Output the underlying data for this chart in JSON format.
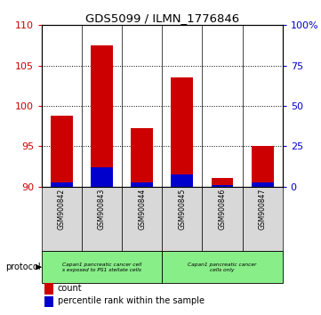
{
  "title": "GDS5099 / ILMN_1776846",
  "samples": [
    "GSM900842",
    "GSM900843",
    "GSM900844",
    "GSM900845",
    "GSM900846",
    "GSM900847"
  ],
  "count_values": [
    98.8,
    107.5,
    97.2,
    103.5,
    91.1,
    95.0
  ],
  "count_base": 90,
  "percentile_values": [
    2.5,
    12.0,
    2.8,
    7.5,
    1.0,
    2.5
  ],
  "ylim_left": [
    90,
    110
  ],
  "ylim_right": [
    0,
    100
  ],
  "left_ticks": [
    90,
    95,
    100,
    105,
    110
  ],
  "right_ticks": [
    0,
    25,
    50,
    75,
    100
  ],
  "right_tick_labels": [
    "0",
    "25",
    "50",
    "75",
    "100%"
  ],
  "left_tick_color": "#cc0000",
  "right_tick_color": "#0000cc",
  "bar_color_red": "#cc0000",
  "bar_color_blue": "#0000cc",
  "protocol_groups": [
    {
      "label": "Capan1 pancreatic cancer cell\ns exposed to PS1 stellate cells",
      "span": [
        0,
        3
      ],
      "color": "#88ee88"
    },
    {
      "label": "Capan1 pancreatic cancer\ncells only",
      "span": [
        3,
        6
      ],
      "color": "#88ee88"
    }
  ],
  "protocol_label": "protocol",
  "legend_items": [
    {
      "label": "count",
      "color": "#cc0000"
    },
    {
      "label": "percentile rank within the sample",
      "color": "#0000cc"
    }
  ],
  "bg_color": "#d8d8d8"
}
